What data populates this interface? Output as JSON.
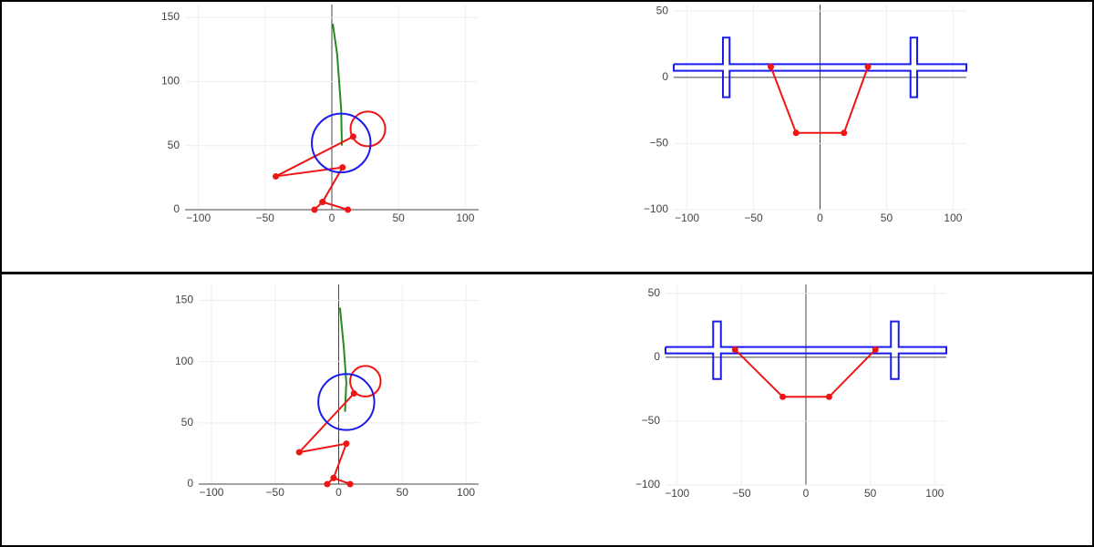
{
  "chart_data": [
    {
      "type": "line",
      "xlim": [
        -110,
        110
      ],
      "ylim": [
        0,
        160
      ],
      "xticks": [
        {
          "value": -100,
          "label": "−100"
        },
        {
          "value": -50,
          "label": "−50"
        },
        0,
        50,
        100
      ],
      "yticks": [
        0,
        50,
        100,
        150
      ],
      "grid": true,
      "series": [
        {
          "color": "#228b22",
          "markers": false,
          "x": [
            0.7,
            4,
            7,
            7.5
          ],
          "y": [
            145,
            121,
            78,
            50
          ]
        },
        {
          "color": "#f01515",
          "markers": true,
          "x": [
            -13,
            -7,
            12,
            null,
            -7,
            8,
            -42,
            16
          ],
          "y": [
            0,
            6,
            0,
            null,
            6,
            33,
            26,
            57
          ]
        }
      ],
      "circles": [
        {
          "x": 27,
          "y": 63,
          "r": 13,
          "color": "#f01515"
        },
        {
          "x": 7,
          "y": 52,
          "r": 22,
          "color": "#1a1aee"
        }
      ]
    },
    {
      "type": "line",
      "xlim": [
        -110,
        110
      ],
      "ylim": [
        -100,
        55
      ],
      "xticks": [
        {
          "value": -100,
          "label": "−100"
        },
        {
          "value": -50,
          "label": "−50"
        },
        0,
        50,
        100
      ],
      "yticks": [
        {
          "value": -100,
          "label": "−100"
        },
        {
          "value": -50,
          "label": "−50"
        },
        0,
        50
      ],
      "grid": true,
      "series": [
        {
          "color": "#1a1aee",
          "markers": false,
          "x": [
            -110,
            -73,
            -73,
            -68,
            -68,
            68,
            68,
            73,
            73,
            110,
            110,
            73,
            73,
            68,
            68,
            -68,
            -68,
            -73,
            -73,
            -110,
            -110
          ],
          "y": [
            10,
            10,
            30,
            30,
            10,
            10,
            30,
            30,
            10,
            10,
            5,
            5,
            -15,
            -15,
            5,
            5,
            -15,
            -15,
            5,
            5,
            10
          ]
        },
        {
          "color": "#f01515",
          "markers": true,
          "x": [
            -37,
            -18,
            18,
            36
          ],
          "y": [
            8,
            -42,
            -42,
            8
          ]
        }
      ],
      "circles": []
    },
    {
      "type": "line",
      "xlim": [
        -110,
        110
      ],
      "ylim": [
        0,
        163
      ],
      "xticks": [
        {
          "value": -100,
          "label": "−100"
        },
        {
          "value": -50,
          "label": "−50"
        },
        0,
        50,
        100
      ],
      "yticks": [
        0,
        50,
        100,
        150
      ],
      "grid": true,
      "series": [
        {
          "color": "#228b22",
          "markers": false,
          "x": [
            1,
            4,
            6,
            5
          ],
          "y": [
            144,
            112,
            83,
            59
          ]
        },
        {
          "color": "#f01515",
          "markers": true,
          "x": [
            -9,
            -4,
            9,
            null,
            -4,
            6,
            -31,
            12
          ],
          "y": [
            0,
            5,
            0,
            null,
            5,
            33,
            26,
            74
          ]
        }
      ],
      "circles": [
        {
          "x": 21,
          "y": 84,
          "r": 12,
          "color": "#f01515"
        },
        {
          "x": 6,
          "y": 67,
          "r": 22,
          "color": "#1a1aee"
        }
      ]
    },
    {
      "type": "line",
      "xlim": [
        -109,
        109
      ],
      "ylim": [
        -100,
        57
      ],
      "xticks": [
        {
          "value": -100,
          "label": "−100"
        },
        {
          "value": -50,
          "label": "−50"
        },
        0,
        50,
        100
      ],
      "yticks": [
        {
          "value": -100,
          "label": "−100"
        },
        {
          "value": -50,
          "label": "−50"
        },
        0,
        50
      ],
      "grid": true,
      "series": [
        {
          "color": "#1a1aee",
          "markers": false,
          "x": [
            -109,
            -72,
            -72,
            -66,
            -66,
            66,
            66,
            72,
            72,
            109,
            109,
            72,
            72,
            66,
            66,
            -66,
            -66,
            -72,
            -72,
            -109,
            -109
          ],
          "y": [
            8,
            8,
            28,
            28,
            8,
            8,
            28,
            28,
            8,
            8,
            3,
            3,
            -17,
            -17,
            3,
            3,
            -17,
            -17,
            3,
            3,
            8
          ]
        },
        {
          "color": "#f01515",
          "markers": true,
          "x": [
            -55,
            -18,
            18,
            54
          ],
          "y": [
            6,
            -31,
            -31,
            6
          ]
        }
      ],
      "circles": []
    }
  ]
}
